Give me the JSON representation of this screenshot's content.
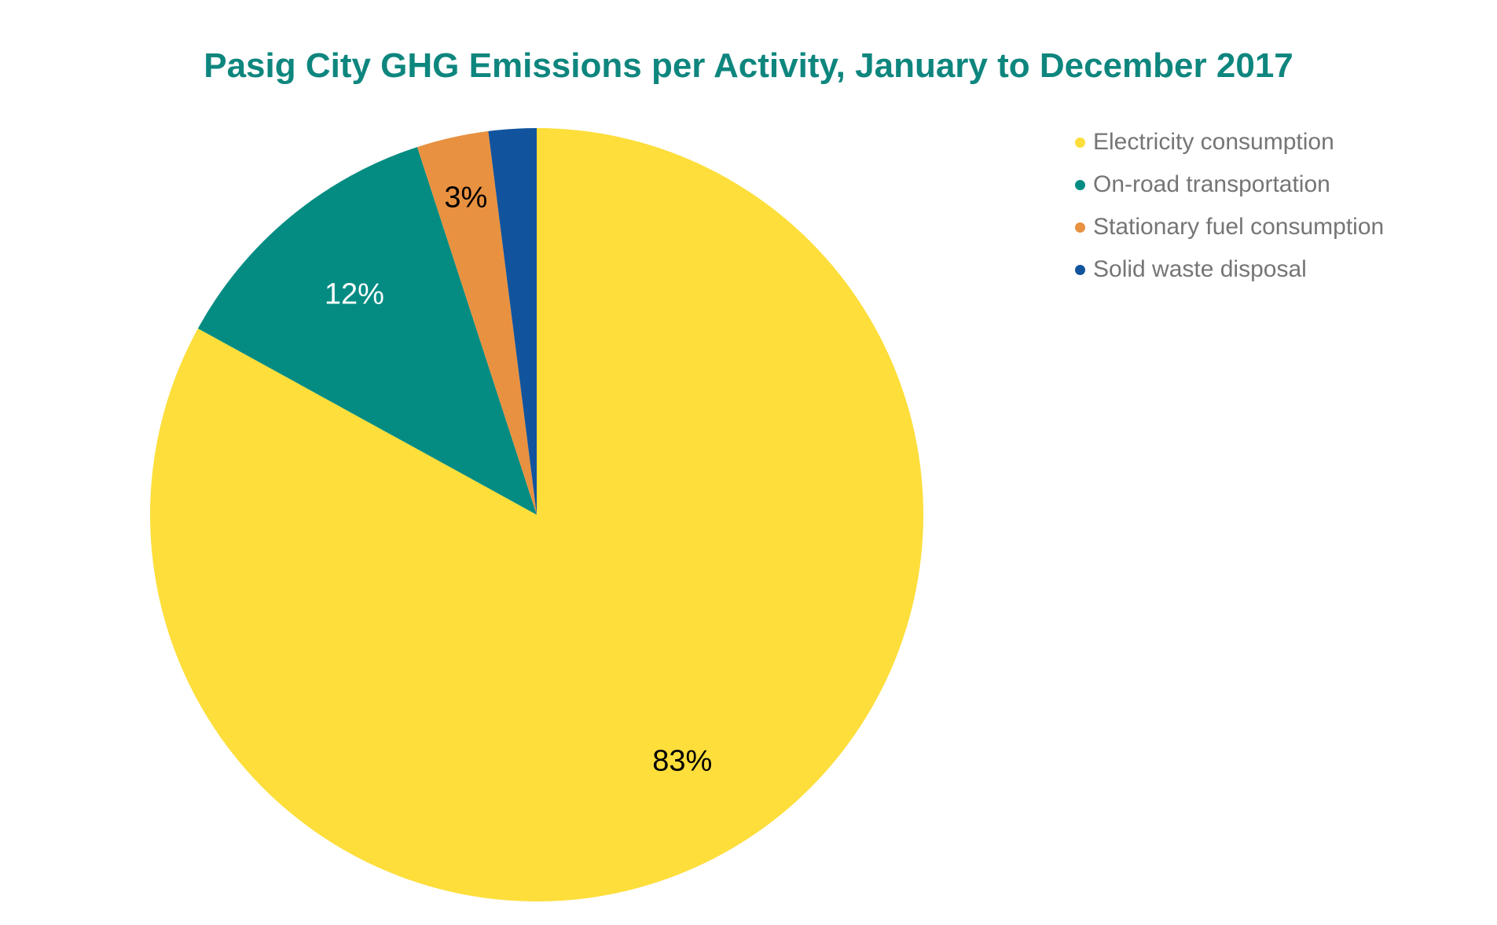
{
  "chart_data": {
    "type": "pie",
    "title": "Pasig City GHG Emissions per Activity, January to December 2017",
    "title_color": "#0e867e",
    "background_color": "#ffffff",
    "legend_position": "right",
    "legend_text_color": "#757575",
    "start_angle_deg": 0,
    "direction": "clockwise",
    "slices": [
      {
        "name": "Electricity consumption",
        "value": 83,
        "display_label": "83%",
        "color": "#fdde3b",
        "label_color": "#000000"
      },
      {
        "name": "On-road transportation",
        "value": 12,
        "display_label": "12%",
        "color": "#048c82",
        "label_color": "#ffffff"
      },
      {
        "name": "Stationary fuel consumption",
        "value": 3,
        "display_label": "3%",
        "color": "#e89140",
        "label_color": "#000000"
      },
      {
        "name": "Solid waste disposal",
        "value": 2,
        "display_label": "",
        "color": "#11549d",
        "label_color": "#000000"
      }
    ]
  },
  "layout_labels": {
    "pie_region": "pie-chart",
    "legend_region": "legend"
  }
}
